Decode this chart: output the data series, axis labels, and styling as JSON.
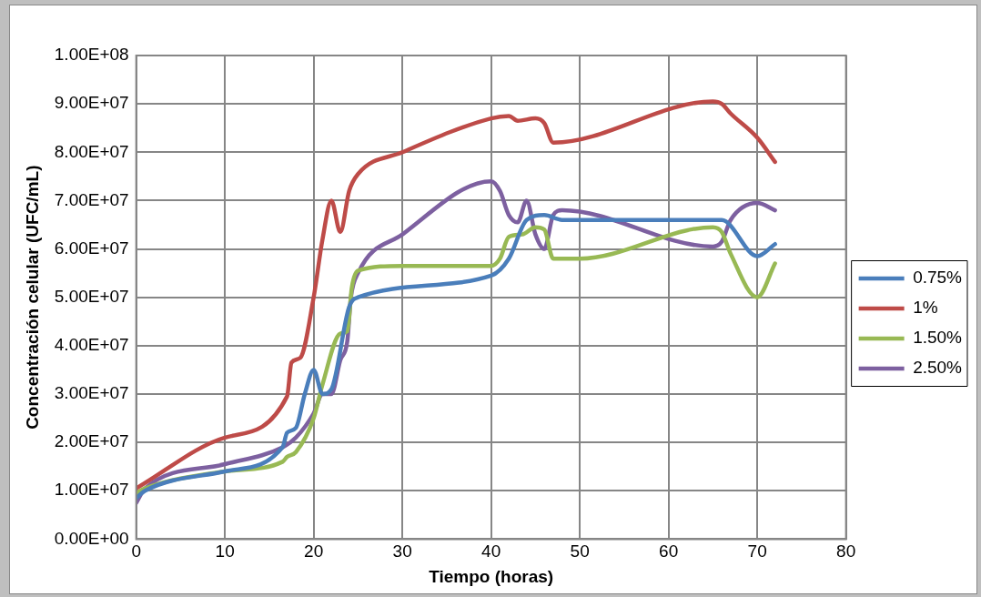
{
  "chart_data": {
    "type": "line",
    "xlabel": "Tiempo (horas)",
    "ylabel": "Concentración celular (UFC/mL)",
    "xlim": [
      0,
      80
    ],
    "xticks": [
      0,
      10,
      20,
      30,
      40,
      50,
      60,
      70,
      80
    ],
    "ylim": [
      0,
      100000000
    ],
    "yticks": [
      {
        "value": 0,
        "label": "0.00E+00"
      },
      {
        "value": 10000000,
        "label": "1.00E+07"
      },
      {
        "value": 20000000,
        "label": "2.00E+07"
      },
      {
        "value": 30000000,
        "label": "3.00E+07"
      },
      {
        "value": 40000000,
        "label": "4.00E+07"
      },
      {
        "value": 50000000,
        "label": "5.00E+07"
      },
      {
        "value": 60000000,
        "label": "6.00E+07"
      },
      {
        "value": 70000000,
        "label": "7.00E+07"
      },
      {
        "value": 80000000,
        "label": "8.00E+07"
      },
      {
        "value": 90000000,
        "label": "9.00E+07"
      },
      {
        "value": 100000000,
        "label": "1.00E+08"
      }
    ],
    "grid": true,
    "legend": "right",
    "marker": "none",
    "line_style": "solid",
    "series": [
      {
        "name": "0.75%",
        "color": "#4a7ebb",
        "x": [
          0,
          1,
          10,
          16.5,
          17,
          18,
          19,
          20,
          21,
          22,
          24,
          25,
          40,
          42,
          44,
          46,
          48,
          66,
          70,
          72
        ],
        "values": [
          8500000,
          10000000,
          14000000,
          19000000,
          22000000,
          23000000,
          30000000,
          35000000,
          30000000,
          31000000,
          48000000,
          50000000,
          54500000,
          58000000,
          66000000,
          67000000,
          66000000,
          66000000,
          58500000,
          61000000
        ]
      },
      {
        "name": "1%",
        "color": "#be4b48",
        "x": [
          0,
          10,
          17,
          17.5,
          18.5,
          20,
          21,
          22,
          23,
          24,
          25,
          30,
          40,
          42,
          43,
          45,
          46,
          47,
          65,
          66,
          67,
          70,
          72
        ],
        "values": [
          10500000,
          21000000,
          29500000,
          36500000,
          37500000,
          50000000,
          62000000,
          70000000,
          63500000,
          72000000,
          75500000,
          80000000,
          87000000,
          87500000,
          86500000,
          87000000,
          86000000,
          82000000,
          90500000,
          90000000,
          88000000,
          83000000,
          78000000
        ]
      },
      {
        "name": "1.50%",
        "color": "#98b954",
        "x": [
          0,
          1,
          10,
          16.5,
          17,
          18,
          20,
          21,
          23,
          23.8,
          24.3,
          25,
          30,
          40,
          41,
          42,
          43.5,
          45,
          46,
          47,
          50,
          65,
          66,
          67,
          70,
          72
        ],
        "values": [
          9500000,
          10500000,
          14000000,
          16000000,
          17000000,
          18000000,
          25000000,
          32000000,
          42500000,
          43000000,
          52000000,
          55500000,
          56500000,
          56500000,
          58000000,
          62500000,
          63000000,
          64500000,
          64000000,
          58000000,
          58000000,
          64500000,
          63500000,
          59000000,
          50000000,
          57000000
        ]
      },
      {
        "name": "2.50%",
        "color": "#7d60a0",
        "x": [
          0,
          1,
          10,
          16.5,
          18,
          20,
          21,
          22,
          23,
          23.8,
          24.2,
          25,
          30,
          40,
          41,
          42,
          43,
          44,
          45,
          46,
          47,
          48,
          65,
          66,
          67,
          70,
          72
        ],
        "values": [
          7500000,
          10500000,
          15500000,
          19000000,
          21000000,
          26000000,
          30000000,
          30000000,
          37000000,
          41000000,
          50000000,
          55000000,
          63000000,
          74000000,
          72000000,
          67000000,
          65500000,
          70000000,
          63000000,
          60000000,
          67000000,
          68000000,
          60500000,
          61500000,
          66000000,
          69500000,
          68000000
        ]
      }
    ]
  }
}
